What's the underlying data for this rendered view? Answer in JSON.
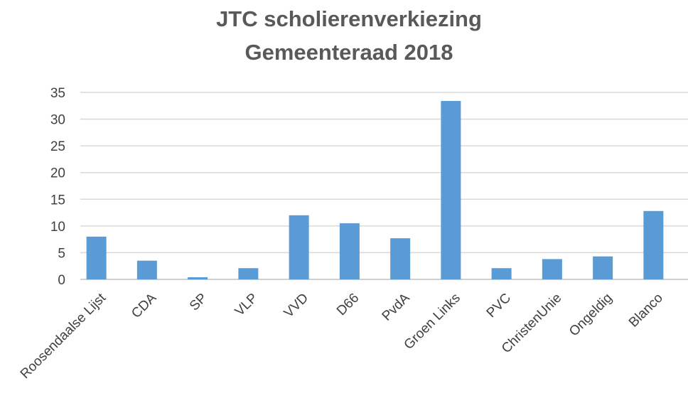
{
  "chart_data": {
    "type": "bar",
    "title": [
      "JTC scholierenverkiezing",
      "Gemeenteraad 2018"
    ],
    "xlabel": "",
    "ylabel": "",
    "categories": [
      "Roosendaalse Lijst",
      "CDA",
      "SP",
      "VLP",
      "VVD",
      "D66",
      "PvdA",
      "Groen Links",
      "PVC",
      "ChristenUnie",
      "Ongeldig",
      "Blanco"
    ],
    "values": [
      8,
      3.5,
      0.4,
      2.1,
      12,
      10.5,
      7.7,
      33.4,
      2.1,
      3.8,
      4.3,
      12.8
    ],
    "ylim": [
      0,
      35
    ],
    "yticks": [
      0,
      5,
      10,
      15,
      20,
      25,
      30,
      35
    ],
    "grid": true,
    "legend": "none",
    "bar_color": "#5b9bd5"
  }
}
